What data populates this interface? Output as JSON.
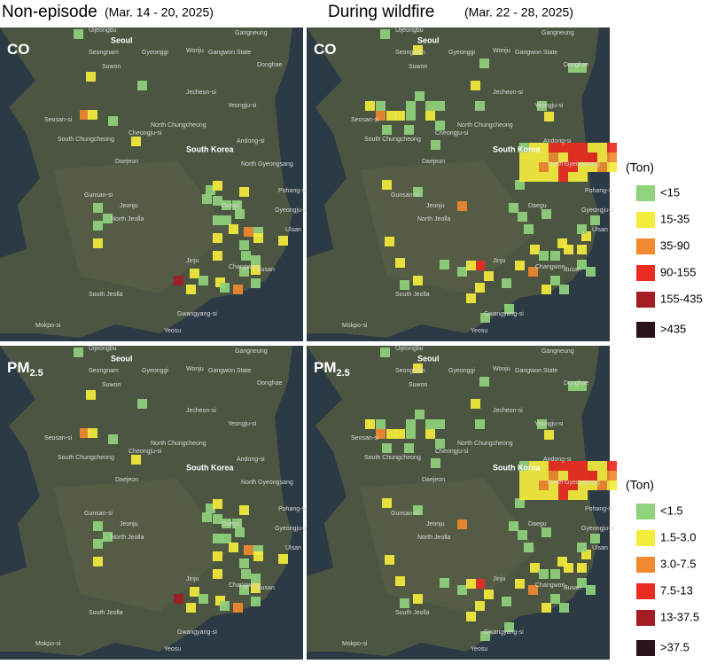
{
  "columns": [
    {
      "title": "Non-episode",
      "period": "(Mar. 14 - 20, 2025)"
    },
    {
      "title": "During wildfire",
      "period": "(Mar. 22 - 28, 2025)"
    }
  ],
  "rows": [
    {
      "label": "CO"
    },
    {
      "label": "PM",
      "subscript": "2.5"
    }
  ],
  "places": [
    "Uijeongbu",
    "Seoul",
    "Gangneung",
    "Gyeonggi",
    "Gangwon State",
    "Seongnam",
    "Donghae",
    "Suwon",
    "Wonju",
    "Jecheon-si",
    "Seosan-si",
    "North Chungcheong",
    "Yeongju-si",
    "South Chungcheong",
    "Cheongju-si",
    "South Korea",
    "Andong-si",
    "Daejeon",
    "North Gyeongsang",
    "Pohang-si",
    "Gunsan-si",
    "Jeonju",
    "Daegu",
    "Gyeongju-si",
    "North Jeolla",
    "Ulsan",
    "Jinju",
    "Changwon",
    "Busan",
    "South Jeolla",
    "Gwangyang-si",
    "Mokpo-si",
    "Yeosu"
  ],
  "legends": [
    {
      "title": "(Ton)",
      "items": [
        {
          "label": "<15",
          "color": "#8fd37c"
        },
        {
          "label": "15-35",
          "color": "#f4ec3c"
        },
        {
          "label": "35-90",
          "color": "#f0892f"
        },
        {
          "label": "90-155",
          "color": "#ec2b20"
        },
        {
          "label": "155-435",
          "color": "#a31d25"
        },
        {
          "label": ">435",
          "color": "#2a1419"
        }
      ]
    },
    {
      "title": "(Ton)",
      "items": [
        {
          "label": "<1.5",
          "color": "#8fd37c"
        },
        {
          "label": "1.5-3.0",
          "color": "#f4ec3c"
        },
        {
          "label": "3.0-7.5",
          "color": "#f0892f"
        },
        {
          "label": "7.5-13",
          "color": "#ec2b20"
        },
        {
          "label": "13-37.5",
          "color": "#a31d25"
        },
        {
          "label": ">37.5",
          "color": "#2a1419"
        }
      ]
    }
  ]
}
